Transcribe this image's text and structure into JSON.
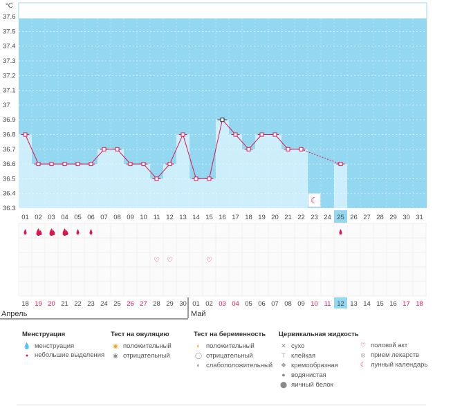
{
  "header": {
    "unit": "°C"
  },
  "chart_data": {
    "type": "line",
    "title": "",
    "ylabel": "°C",
    "ylim": [
      36.3,
      37.7
    ],
    "y_ticks": [
      "37.6",
      "37.5",
      "37.4",
      "37.3",
      "37.2",
      "37.1",
      "37",
      "36.9",
      "36.8",
      "36.7",
      "36.6",
      "36.5",
      "36.4",
      "36.3"
    ],
    "x_cycle_days": [
      "01",
      "02",
      "03",
      "04",
      "05",
      "06",
      "07",
      "08",
      "09",
      "10",
      "11",
      "12",
      "13",
      "14",
      "15",
      "16",
      "17",
      "18",
      "19",
      "20",
      "21",
      "22",
      "23",
      "24",
      "25",
      "26",
      "27",
      "28",
      "29",
      "30",
      "31"
    ],
    "x_calendar_days": [
      "18",
      "19",
      "20",
      "21",
      "22",
      "23",
      "24",
      "25",
      "26",
      "27",
      "28",
      "29",
      "30",
      "01",
      "02",
      "03",
      "04",
      "05",
      "06",
      "07",
      "08",
      "09",
      "10",
      "11",
      "12",
      "13",
      "14",
      "15",
      "16",
      "17",
      "18"
    ],
    "weekend_calendar_indices": [
      1,
      2,
      8,
      9,
      15,
      16,
      22,
      23,
      29,
      30
    ],
    "highlight_index": 24,
    "months": [
      {
        "label": "Апрель",
        "start_index": 0
      },
      {
        "label": "Май",
        "start_index": 13
      }
    ],
    "series": [
      {
        "name": "temperature",
        "values": [
          36.8,
          36.6,
          36.6,
          36.6,
          36.6,
          36.6,
          36.7,
          36.7,
          36.6,
          36.6,
          36.5,
          36.6,
          36.8,
          36.5,
          36.5,
          36.9,
          36.8,
          36.7,
          36.8,
          36.8,
          36.7,
          36.7,
          null,
          null,
          36.6,
          null,
          null,
          null,
          null,
          null,
          null
        ]
      }
    ],
    "dashed_segment": {
      "from_index": 21,
      "to_index": 24
    },
    "marked_point_index": 15,
    "menstruation_marks": [
      {
        "index": 0,
        "kind": "light"
      },
      {
        "index": 1,
        "kind": "full"
      },
      {
        "index": 2,
        "kind": "full"
      },
      {
        "index": 3,
        "kind": "full"
      },
      {
        "index": 4,
        "kind": "light"
      },
      {
        "index": 5,
        "kind": "light"
      },
      {
        "index": 24,
        "kind": "light"
      }
    ],
    "intercourse_indices": [
      10,
      11,
      14
    ],
    "moon_indices": [
      22
    ]
  },
  "legend": {
    "menstruation": {
      "title": "Менструация",
      "items": [
        {
          "icon": "menstruation-icon",
          "label": "менструация"
        },
        {
          "icon": "spotting-icon",
          "label": "небольшие выделения"
        }
      ]
    },
    "ovulation_test": {
      "title": "Тест на овуляцию",
      "items": [
        {
          "icon": "positive-test-icon",
          "label": "положительный"
        },
        {
          "icon": "negative-test-icon",
          "label": "отрицательный"
        }
      ]
    },
    "pregnancy_test": {
      "title": "Тест на беременность",
      "items": [
        {
          "icon": "positive-pregnancy-icon",
          "label": "положительный"
        },
        {
          "icon": "negative-pregnancy-icon",
          "label": "отрицательный"
        },
        {
          "icon": "weak-positive-icon",
          "label": "слабоположительный"
        }
      ]
    },
    "cervical_fluid": {
      "title": "Цервикальная жидкость",
      "items": [
        {
          "icon": "dry-icon",
          "label": "сухо"
        },
        {
          "icon": "sticky-icon",
          "label": "клейкая"
        },
        {
          "icon": "creamy-icon",
          "label": "кремообразная"
        },
        {
          "icon": "watery-icon",
          "label": "водянистая"
        },
        {
          "icon": "egg-white-icon",
          "label": "яичный белок"
        }
      ]
    },
    "other": {
      "items": [
        {
          "icon": "heart-icon",
          "label": "половой акт"
        },
        {
          "icon": "pill-icon",
          "label": "прием лекарств"
        },
        {
          "icon": "moon-icon",
          "label": "лунный календарь"
        }
      ]
    }
  }
}
